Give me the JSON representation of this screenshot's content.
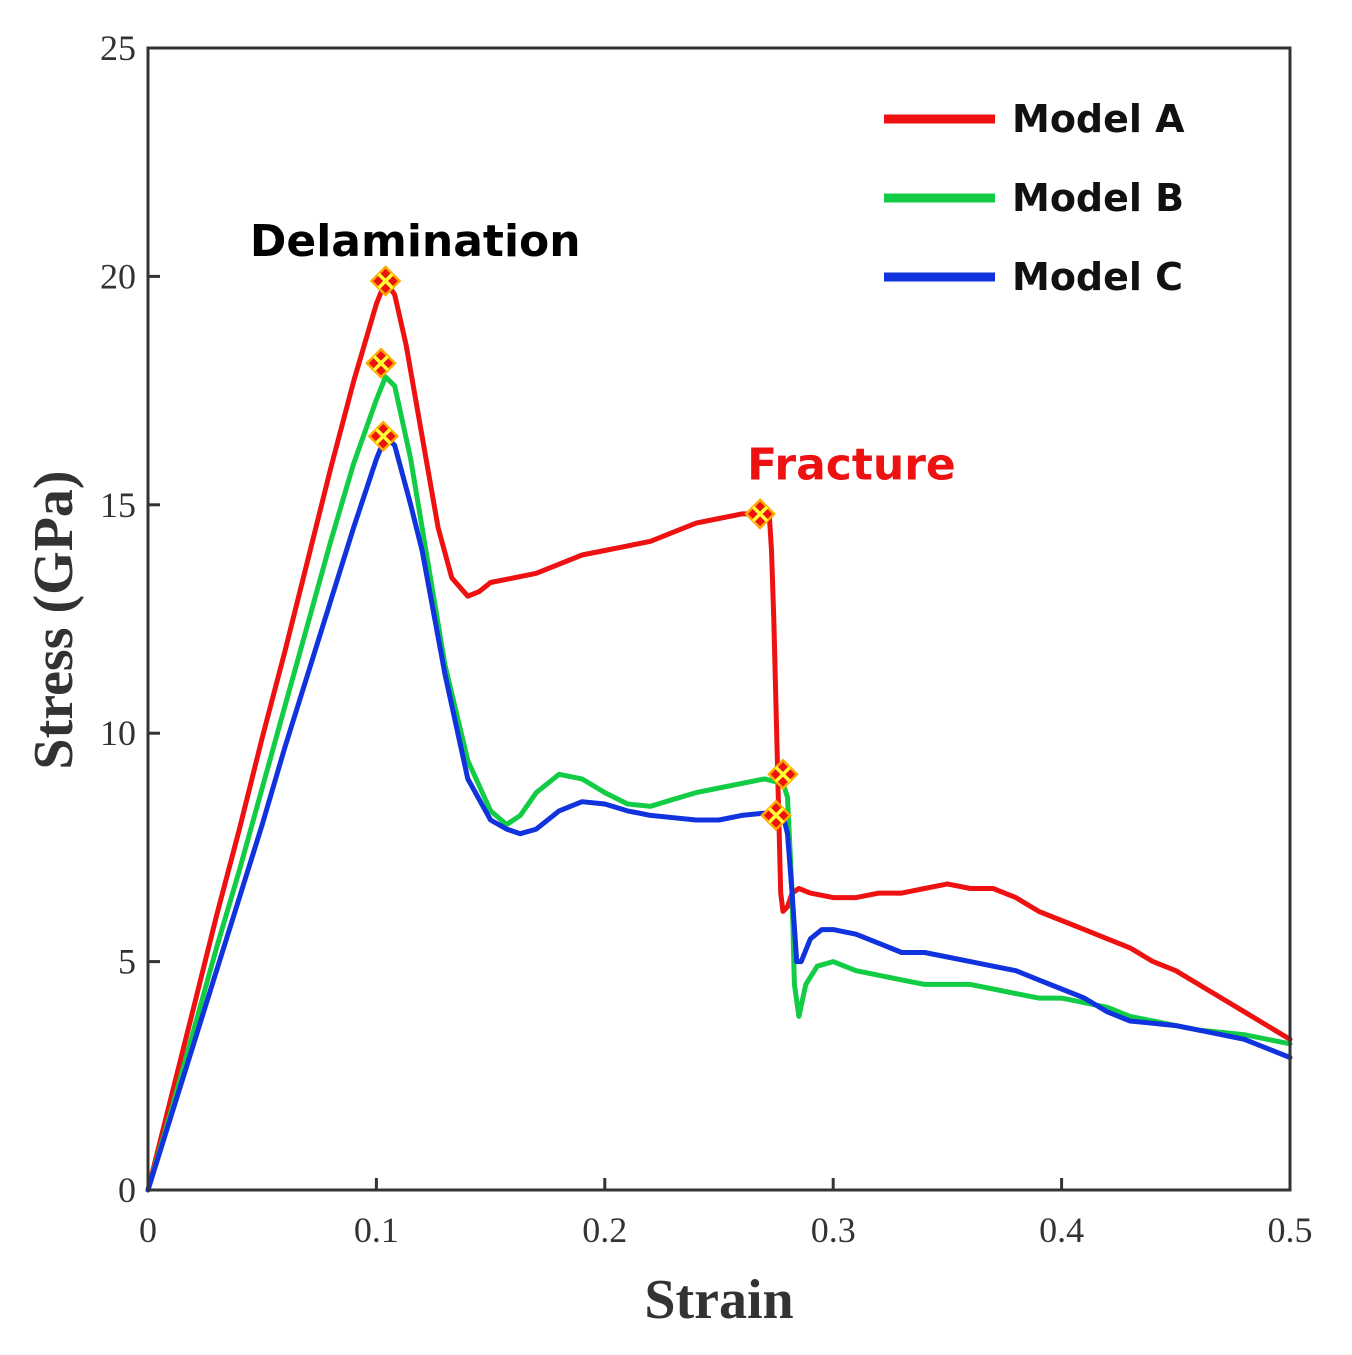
{
  "chart_data": {
    "type": "line",
    "title": "",
    "xlabel": "Strain",
    "ylabel": "Stress (GPa)",
    "xlim": [
      0,
      0.5
    ],
    "ylim": [
      0,
      25
    ],
    "xticks": [
      0,
      0.1,
      0.2,
      0.3,
      0.4,
      0.5
    ],
    "xtick_labels": [
      "0",
      "0.1",
      "0.2",
      "0.3",
      "0.4",
      "0.5"
    ],
    "yticks": [
      0,
      5,
      10,
      15,
      20,
      25
    ],
    "ytick_labels": [
      "0",
      "5",
      "10",
      "15",
      "20",
      "25"
    ],
    "grid": false,
    "legend_position": "top-right",
    "series": [
      {
        "name": "Model A",
        "color": "#ee1111",
        "points": [
          [
            0,
            0
          ],
          [
            0.01,
            2.0
          ],
          [
            0.02,
            4.0
          ],
          [
            0.03,
            6.0
          ],
          [
            0.04,
            7.9
          ],
          [
            0.05,
            9.9
          ],
          [
            0.06,
            11.8
          ],
          [
            0.07,
            13.8
          ],
          [
            0.08,
            15.8
          ],
          [
            0.09,
            17.7
          ],
          [
            0.1,
            19.4
          ],
          [
            0.104,
            19.9
          ],
          [
            0.108,
            19.6
          ],
          [
            0.113,
            18.5
          ],
          [
            0.12,
            16.5
          ],
          [
            0.127,
            14.5
          ],
          [
            0.133,
            13.4
          ],
          [
            0.14,
            13.0
          ],
          [
            0.145,
            13.1
          ],
          [
            0.15,
            13.3
          ],
          [
            0.16,
            13.4
          ],
          [
            0.17,
            13.5
          ],
          [
            0.18,
            13.7
          ],
          [
            0.19,
            13.9
          ],
          [
            0.2,
            14.0
          ],
          [
            0.21,
            14.1
          ],
          [
            0.22,
            14.2
          ],
          [
            0.23,
            14.4
          ],
          [
            0.24,
            14.6
          ],
          [
            0.25,
            14.7
          ],
          [
            0.26,
            14.8
          ],
          [
            0.268,
            14.8
          ],
          [
            0.272,
            14.8
          ],
          [
            0.273,
            14.0
          ],
          [
            0.274,
            12.5
          ],
          [
            0.275,
            10.5
          ],
          [
            0.276,
            8.5
          ],
          [
            0.277,
            6.5
          ],
          [
            0.278,
            6.1
          ],
          [
            0.28,
            6.2
          ],
          [
            0.282,
            6.5
          ],
          [
            0.285,
            6.6
          ],
          [
            0.29,
            6.5
          ],
          [
            0.3,
            6.4
          ],
          [
            0.31,
            6.4
          ],
          [
            0.32,
            6.5
          ],
          [
            0.33,
            6.5
          ],
          [
            0.34,
            6.6
          ],
          [
            0.35,
            6.7
          ],
          [
            0.36,
            6.6
          ],
          [
            0.37,
            6.6
          ],
          [
            0.38,
            6.4
          ],
          [
            0.39,
            6.1
          ],
          [
            0.4,
            5.9
          ],
          [
            0.41,
            5.7
          ],
          [
            0.42,
            5.5
          ],
          [
            0.43,
            5.3
          ],
          [
            0.44,
            5.0
          ],
          [
            0.45,
            4.8
          ],
          [
            0.46,
            4.5
          ],
          [
            0.47,
            4.2
          ],
          [
            0.48,
            3.9
          ],
          [
            0.49,
            3.6
          ],
          [
            0.5,
            3.3
          ]
        ]
      },
      {
        "name": "Model B",
        "color": "#11cc44",
        "points": [
          [
            0,
            0
          ],
          [
            0.01,
            1.7
          ],
          [
            0.02,
            3.5
          ],
          [
            0.03,
            5.3
          ],
          [
            0.04,
            7.0
          ],
          [
            0.05,
            8.8
          ],
          [
            0.06,
            10.6
          ],
          [
            0.07,
            12.4
          ],
          [
            0.08,
            14.2
          ],
          [
            0.09,
            15.9
          ],
          [
            0.1,
            17.3
          ],
          [
            0.104,
            17.8
          ],
          [
            0.108,
            17.6
          ],
          [
            0.115,
            16.0
          ],
          [
            0.12,
            14.5
          ],
          [
            0.13,
            11.5
          ],
          [
            0.14,
            9.4
          ],
          [
            0.15,
            8.3
          ],
          [
            0.157,
            8.0
          ],
          [
            0.163,
            8.2
          ],
          [
            0.17,
            8.7
          ],
          [
            0.18,
            9.1
          ],
          [
            0.19,
            9.0
          ],
          [
            0.2,
            8.7
          ],
          [
            0.21,
            8.45
          ],
          [
            0.22,
            8.4
          ],
          [
            0.23,
            8.55
          ],
          [
            0.24,
            8.7
          ],
          [
            0.25,
            8.8
          ],
          [
            0.26,
            8.9
          ],
          [
            0.27,
            9.0
          ],
          [
            0.278,
            8.9
          ],
          [
            0.28,
            8.6
          ],
          [
            0.282,
            6.5
          ],
          [
            0.283,
            4.5
          ],
          [
            0.285,
            3.8
          ],
          [
            0.288,
            4.5
          ],
          [
            0.293,
            4.9
          ],
          [
            0.3,
            5.0
          ],
          [
            0.305,
            4.9
          ],
          [
            0.31,
            4.8
          ],
          [
            0.32,
            4.7
          ],
          [
            0.33,
            4.6
          ],
          [
            0.34,
            4.5
          ],
          [
            0.35,
            4.5
          ],
          [
            0.36,
            4.5
          ],
          [
            0.37,
            4.4
          ],
          [
            0.38,
            4.3
          ],
          [
            0.39,
            4.2
          ],
          [
            0.4,
            4.2
          ],
          [
            0.41,
            4.1
          ],
          [
            0.42,
            4.0
          ],
          [
            0.43,
            3.8
          ],
          [
            0.44,
            3.7
          ],
          [
            0.45,
            3.6
          ],
          [
            0.46,
            3.5
          ],
          [
            0.47,
            3.45
          ],
          [
            0.48,
            3.4
          ],
          [
            0.49,
            3.3
          ],
          [
            0.5,
            3.2
          ]
        ]
      },
      {
        "name": "Model C",
        "color": "#1133dd",
        "points": [
          [
            0,
            0
          ],
          [
            0.01,
            1.6
          ],
          [
            0.02,
            3.2
          ],
          [
            0.03,
            4.8
          ],
          [
            0.04,
            6.4
          ],
          [
            0.05,
            8.0
          ],
          [
            0.06,
            9.7
          ],
          [
            0.07,
            11.3
          ],
          [
            0.08,
            12.9
          ],
          [
            0.09,
            14.5
          ],
          [
            0.1,
            16.0
          ],
          [
            0.104,
            16.5
          ],
          [
            0.108,
            16.3
          ],
          [
            0.115,
            15.0
          ],
          [
            0.12,
            14.0
          ],
          [
            0.13,
            11.3
          ],
          [
            0.14,
            9.0
          ],
          [
            0.15,
            8.1
          ],
          [
            0.157,
            7.9
          ],
          [
            0.163,
            7.8
          ],
          [
            0.17,
            7.9
          ],
          [
            0.18,
            8.3
          ],
          [
            0.19,
            8.5
          ],
          [
            0.2,
            8.45
          ],
          [
            0.21,
            8.3
          ],
          [
            0.22,
            8.2
          ],
          [
            0.23,
            8.15
          ],
          [
            0.24,
            8.1
          ],
          [
            0.25,
            8.1
          ],
          [
            0.26,
            8.2
          ],
          [
            0.27,
            8.25
          ],
          [
            0.278,
            8.2
          ],
          [
            0.28,
            7.8
          ],
          [
            0.282,
            6.5
          ],
          [
            0.284,
            5.0
          ],
          [
            0.286,
            5.0
          ],
          [
            0.29,
            5.5
          ],
          [
            0.295,
            5.7
          ],
          [
            0.3,
            5.7
          ],
          [
            0.31,
            5.6
          ],
          [
            0.32,
            5.4
          ],
          [
            0.33,
            5.2
          ],
          [
            0.34,
            5.2
          ],
          [
            0.35,
            5.1
          ],
          [
            0.36,
            5.0
          ],
          [
            0.37,
            4.9
          ],
          [
            0.38,
            4.8
          ],
          [
            0.39,
            4.6
          ],
          [
            0.4,
            4.4
          ],
          [
            0.41,
            4.2
          ],
          [
            0.42,
            3.9
          ],
          [
            0.43,
            3.7
          ],
          [
            0.44,
            3.65
          ],
          [
            0.45,
            3.6
          ],
          [
            0.46,
            3.5
          ],
          [
            0.47,
            3.4
          ],
          [
            0.48,
            3.3
          ],
          [
            0.49,
            3.1
          ],
          [
            0.5,
            2.9
          ]
        ]
      }
    ],
    "markers": [
      {
        "x": 0.104,
        "y": 19.9,
        "series": "Model A"
      },
      {
        "x": 0.102,
        "y": 18.1,
        "series": "Model B"
      },
      {
        "x": 0.103,
        "y": 16.5,
        "series": "Model C"
      },
      {
        "x": 0.268,
        "y": 14.8,
        "series": "Model A"
      },
      {
        "x": 0.278,
        "y": 9.1,
        "series": "Model B"
      },
      {
        "x": 0.275,
        "y": 8.2,
        "series": "Model C"
      }
    ],
    "annotations": [
      {
        "text": "Delamination",
        "x": 0.117,
        "y": 20.8,
        "color": "#000000"
      },
      {
        "text": "Fracture",
        "x": 0.308,
        "y": 15.9,
        "color": "#ee1111"
      }
    ]
  }
}
